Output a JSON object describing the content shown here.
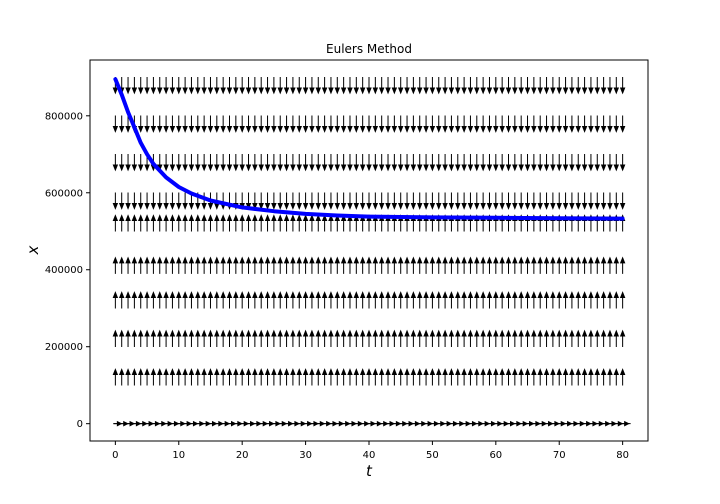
{
  "chart_data": {
    "type": "line",
    "title": "Eulers Method",
    "xlabel": "t",
    "ylabel": "x",
    "xlim": [
      -4,
      84
    ],
    "ylim": [
      -45000,
      945000
    ],
    "xticks": [
      0,
      10,
      20,
      30,
      40,
      50,
      60,
      70,
      80
    ],
    "yticks": [
      0,
      200000,
      400000,
      600000,
      800000
    ],
    "xtick_labels": [
      "0",
      "10",
      "20",
      "30",
      "40",
      "50",
      "60",
      "70",
      "80"
    ],
    "ytick_labels": [
      "0",
      "200000",
      "400000",
      "600000",
      "800000"
    ],
    "grid": false,
    "colors": {
      "solution": "#0000ff",
      "field": "#000000",
      "frame": "#000000"
    },
    "series": [
      {
        "x": [
          0,
          1,
          2,
          3,
          4,
          5,
          6,
          8,
          10,
          12,
          15,
          20,
          25,
          30,
          35,
          40,
          50,
          60,
          70,
          80
        ],
        "y": [
          895000,
          855000,
          810000,
          770000,
          730000,
          700000,
          675000,
          640000,
          615000,
          598000,
          580000,
          562000,
          552000,
          545000,
          541000,
          538000,
          536000,
          535000,
          534000,
          533000
        ]
      }
    ],
    "direction_field": {
      "x_values": [
        0,
        1,
        2,
        3,
        4,
        5,
        6,
        7,
        8,
        9,
        10,
        11,
        12,
        13,
        14,
        15,
        16,
        17,
        18,
        19,
        20,
        21,
        22,
        23,
        24,
        25,
        26,
        27,
        28,
        29,
        30,
        31,
        32,
        33,
        34,
        35,
        36,
        37,
        38,
        39,
        40,
        41,
        42,
        43,
        44,
        45,
        46,
        47,
        48,
        49,
        50,
        51,
        52,
        53,
        54,
        55,
        56,
        57,
        58,
        59,
        60,
        61,
        62,
        63,
        64,
        65,
        66,
        67,
        68,
        69,
        70,
        71,
        72,
        73,
        74,
        75,
        76,
        77,
        78,
        79,
        80
      ],
      "rows": [
        {
          "y": 880000,
          "direction": "down"
        },
        {
          "y": 780000,
          "direction": "down"
        },
        {
          "y": 680000,
          "direction": "down"
        },
        {
          "y": 580000,
          "direction": "down"
        },
        {
          "y": 520000,
          "direction": "up"
        },
        {
          "y": 410000,
          "direction": "up"
        },
        {
          "y": 320000,
          "direction": "up"
        },
        {
          "y": 220000,
          "direction": "up"
        },
        {
          "y": 120000,
          "direction": "up"
        },
        {
          "y": 0,
          "direction": "right"
        }
      ]
    }
  }
}
